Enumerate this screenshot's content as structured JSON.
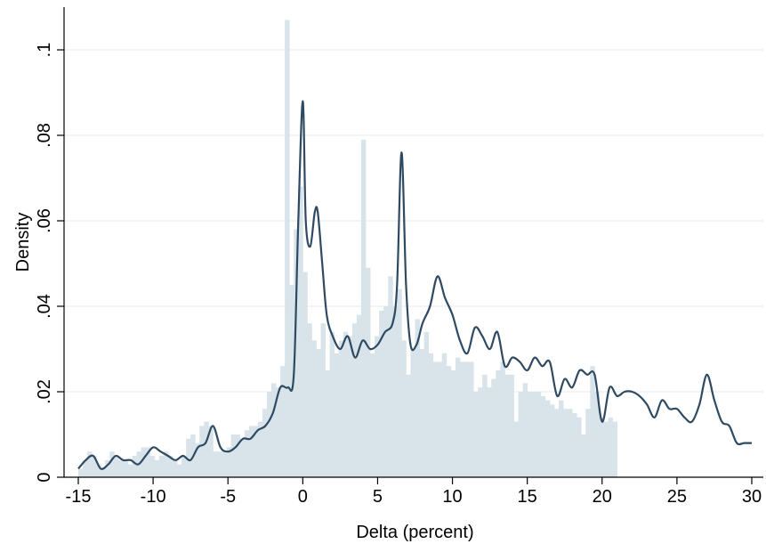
{
  "chart_data": {
    "type": "bar",
    "subtype": "histogram-with-kernel-density",
    "xlabel": "Delta (percent)",
    "ylabel": "Density",
    "xlim": [
      -15,
      30
    ],
    "ylim": [
      0,
      0.11
    ],
    "x_ticks": [
      -15,
      -10,
      -5,
      0,
      5,
      10,
      15,
      20,
      25,
      30
    ],
    "x_tick_labels": [
      "-15",
      "-10",
      "-5",
      "0",
      "5",
      "10",
      "15",
      "20",
      "25",
      "30"
    ],
    "y_ticks": [
      0,
      0.02,
      0.04,
      0.06,
      0.08,
      0.1
    ],
    "y_tick_labels": [
      "0",
      ".02",
      ".04",
      ".06",
      ".08",
      ".1"
    ],
    "grid": "horizontal",
    "bar_color": "#d9e3ea",
    "line_color": "#2e4a62",
    "histogram": {
      "bin_width": 0.3,
      "bin_start": -15,
      "values": [
        0.002,
        0.004,
        0.006,
        0.005,
        0.003,
        0.002,
        0.004,
        0.006,
        0.005,
        0.004,
        0.004,
        0.003,
        0.005,
        0.006,
        0.007,
        0.007,
        0.005,
        0.004,
        0.005,
        0.006,
        0.005,
        0.004,
        0.003,
        0.005,
        0.009,
        0.01,
        0.008,
        0.012,
        0.013,
        0.012,
        0.006,
        0.006,
        0.006,
        0.007,
        0.01,
        0.01,
        0.009,
        0.011,
        0.012,
        0.012,
        0.013,
        0.016,
        0.02,
        0.022,
        0.021,
        0.026,
        0.107,
        0.045,
        0.058,
        0.068,
        0.048,
        0.036,
        0.032,
        0.03,
        0.036,
        0.025,
        0.034,
        0.029,
        0.032,
        0.034,
        0.033,
        0.036,
        0.038,
        0.079,
        0.049,
        0.029,
        0.033,
        0.039,
        0.04,
        0.047,
        0.04,
        0.044,
        0.032,
        0.024,
        0.03,
        0.037,
        0.03,
        0.034,
        0.029,
        0.027,
        0.027,
        0.029,
        0.026,
        0.025,
        0.028,
        0.027,
        0.027,
        0.027,
        0.02,
        0.021,
        0.024,
        0.021,
        0.023,
        0.025,
        0.027,
        0.024,
        0.024,
        0.013,
        0.02,
        0.022,
        0.02,
        0.02,
        0.02,
        0.019,
        0.018,
        0.017,
        0.016,
        0.018,
        0.016,
        0.016,
        0.015,
        0.014,
        0.01,
        0.016,
        0.026,
        0.02,
        0.014,
        0.013,
        0.014,
        0.013
      ],
      "y": [
        0.002,
        0.004,
        0.006,
        0.005,
        0.003,
        0.002,
        0.004,
        0.006,
        0.005,
        0.004,
        0.004,
        0.003,
        0.005,
        0.006,
        0.007,
        0.007,
        0.005,
        0.004,
        0.005,
        0.006,
        0.005,
        0.004,
        0.003,
        0.005,
        0.009,
        0.01,
        0.008,
        0.012,
        0.013,
        0.012,
        0.006,
        0.006,
        0.006,
        0.007,
        0.01,
        0.01,
        0.009,
        0.011,
        0.012,
        0.012,
        0.013,
        0.016,
        0.02,
        0.022,
        0.021,
        0.026,
        0.107,
        0.045,
        0.058,
        0.068,
        0.048,
        0.036,
        0.032,
        0.03,
        0.036,
        0.025,
        0.034,
        0.029,
        0.032,
        0.034,
        0.033,
        0.036,
        0.038,
        0.079,
        0.049,
        0.029,
        0.033,
        0.039,
        0.04,
        0.047,
        0.04,
        0.044,
        0.032,
        0.024,
        0.03,
        0.037,
        0.03,
        0.034,
        0.029,
        0.027,
        0.027,
        0.029,
        0.026,
        0.025,
        0.028,
        0.027,
        0.027,
        0.027,
        0.02,
        0.021,
        0.024,
        0.021,
        0.023,
        0.025,
        0.027,
        0.024,
        0.024,
        0.013,
        0.02,
        0.022,
        0.02,
        0.02,
        0.02,
        0.019,
        0.018,
        0.017,
        0.016,
        0.018,
        0.016,
        0.016,
        0.015,
        0.014,
        0.01,
        0.016,
        0.026,
        0.02,
        0.014,
        0.013,
        0.014,
        0.013
      ]
    },
    "kernel_density": {
      "x": [
        -15,
        -14.5,
        -14,
        -13.5,
        -13,
        -12.5,
        -12,
        -11.5,
        -11,
        -10.5,
        -10,
        -9.5,
        -9,
        -8.5,
        -8,
        -7.5,
        -7,
        -6.5,
        -6,
        -5.5,
        -5,
        -4.5,
        -4,
        -3.5,
        -3,
        -2.5,
        -2,
        -1.5,
        -1,
        -0.6,
        -0.3,
        0,
        0.2,
        0.5,
        0.8,
        1,
        1.3,
        1.6,
        2,
        2.5,
        3,
        3.5,
        4,
        4.5,
        5,
        5.5,
        6,
        6.3,
        6.6,
        6.9,
        7.2,
        7.6,
        8,
        8.5,
        9,
        9.5,
        10,
        10.5,
        11,
        11.5,
        12,
        12.5,
        13,
        13.5,
        14,
        14.5,
        15,
        15.5,
        16,
        16.5,
        17,
        17.5,
        18,
        18.5,
        19,
        19.5,
        20,
        20.5,
        21,
        21.5,
        22,
        22.5,
        23,
        23.5,
        24,
        24.5,
        25,
        25.5,
        26,
        26.5,
        27,
        27.5,
        28,
        28.5,
        29,
        29.5,
        30
      ],
      "y": [
        0.002,
        0.004,
        0.005,
        0.002,
        0.003,
        0.005,
        0.004,
        0.004,
        0.003,
        0.005,
        0.007,
        0.006,
        0.005,
        0.004,
        0.005,
        0.004,
        0.007,
        0.008,
        0.012,
        0.007,
        0.006,
        0.007,
        0.009,
        0.009,
        0.011,
        0.012,
        0.015,
        0.021,
        0.021,
        0.024,
        0.06,
        0.088,
        0.06,
        0.054,
        0.062,
        0.062,
        0.05,
        0.038,
        0.033,
        0.03,
        0.033,
        0.028,
        0.032,
        0.03,
        0.031,
        0.034,
        0.036,
        0.045,
        0.076,
        0.045,
        0.031,
        0.031,
        0.036,
        0.04,
        0.047,
        0.042,
        0.038,
        0.032,
        0.029,
        0.035,
        0.033,
        0.03,
        0.034,
        0.026,
        0.028,
        0.027,
        0.025,
        0.028,
        0.026,
        0.027,
        0.019,
        0.023,
        0.021,
        0.025,
        0.024,
        0.024,
        0.013,
        0.021,
        0.019,
        0.02,
        0.02,
        0.019,
        0.017,
        0.014,
        0.018,
        0.016,
        0.016,
        0.014,
        0.013,
        0.017,
        0.024,
        0.018,
        0.013,
        0.012,
        0.008,
        0.008,
        0.008
      ]
    }
  }
}
